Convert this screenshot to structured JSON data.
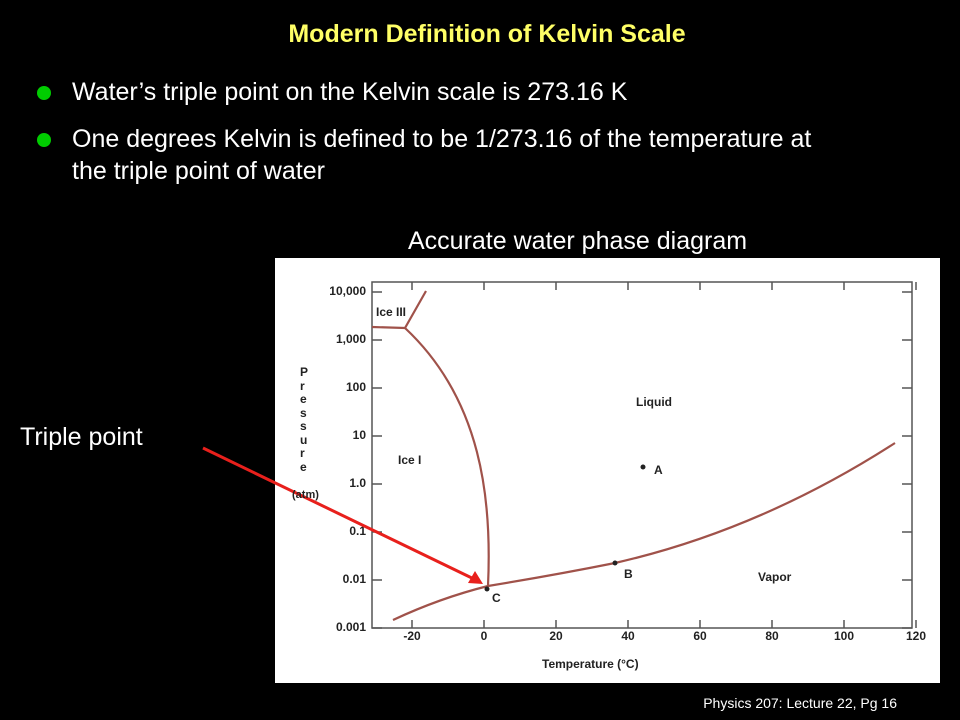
{
  "title": "Modern Definition of Kelvin Scale",
  "bullets": [
    "Water’s triple point on the Kelvin scale is 273.16 K",
    "One degrees Kelvin is defined to be 1/273.16 of the temperature at the triple point of water"
  ],
  "figure_caption": "Accurate water phase diagram",
  "callout": "Triple point",
  "footer": "Physics 207: Lecture 22, Pg 16",
  "diagram": {
    "y_label": "Pressure",
    "y_unit": "(atm)",
    "x_label": "Temperature (°C)",
    "yticks": [
      "10,000",
      "1,000",
      "100",
      "10",
      "1.0",
      "0.1",
      "0.01",
      "0.001"
    ],
    "xticks": [
      "-20",
      "0",
      "20",
      "40",
      "60",
      "80",
      "100",
      "120"
    ],
    "regions": [
      "Ice III",
      "Ice I",
      "Liquid",
      "Vapor"
    ],
    "points": [
      "A",
      "B",
      "C"
    ]
  }
}
